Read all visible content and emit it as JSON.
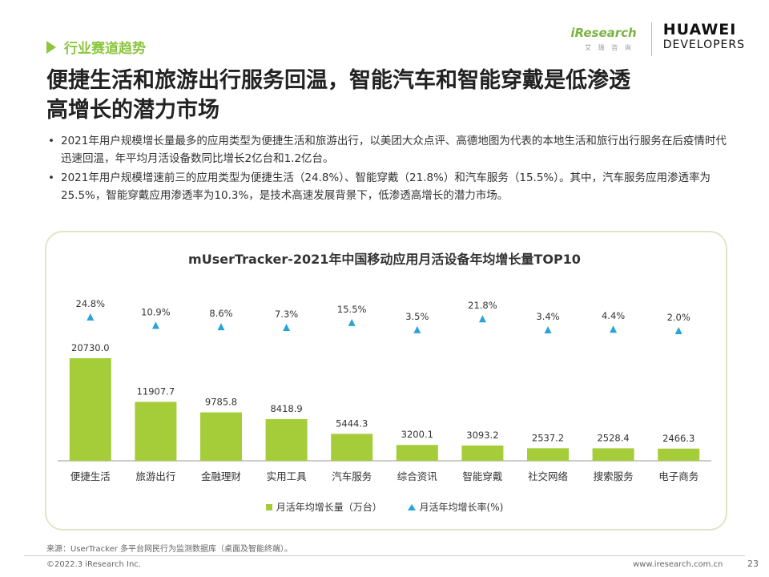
{
  "header": {
    "section_label": "行业赛道趋势",
    "title": "便捷生活和旅游出行服务回温，智能汽车和智能穿戴是低渗透高增长的潜力市场",
    "logo_iresearch": "iResearch",
    "logo_iresearch_sub": "艾 瑞 咨 询",
    "logo_huawei_line1": "HUAWEI",
    "logo_huawei_line2": "DEVELOPERS"
  },
  "bullets": [
    "2021年用户规模增长量最多的应用类型为便捷生活和旅游出行，以美团大众点评、高德地图为代表的本地生活和旅行出行服务在后疫情时代迅速回温，年平均月活设备数同比增长2亿台和1.2亿台。",
    "2021年用户规模增速前三的应用类型为便捷生活（24.8%）、智能穿戴（21.8%）和汽车服务（15.5%）。其中，汽车服务应用渗透率为25.5%，智能穿戴应用渗透率为10.3%，是技术高速发展背景下，低渗透高增长的潜力市场。"
  ],
  "chart_data": {
    "type": "bar",
    "title": "mUserTracker-2021年中国移动应用月活设备年均增长量TOP10",
    "categories": [
      "便捷生活",
      "旅游出行",
      "金融理财",
      "实用工具",
      "汽车服务",
      "综合资讯",
      "智能穿戴",
      "社交网络",
      "搜索服务",
      "电子商务"
    ],
    "series": [
      {
        "name": "月活年均增长量（万台）",
        "type": "bar",
        "color": "#a4cd39",
        "values": [
          20730.0,
          11907.7,
          9785.8,
          8418.9,
          5444.3,
          3200.1,
          3093.2,
          2537.2,
          2528.4,
          2466.3
        ],
        "labels": [
          "20730.0",
          "11907.7",
          "9785.8",
          "8418.9",
          "5444.3",
          "3200.1",
          "3093.2",
          "2537.2",
          "2528.4",
          "2466.3"
        ]
      },
      {
        "name": "月活年均增长率(%)",
        "type": "marker",
        "color": "#2aa3d8",
        "values": [
          24.8,
          10.9,
          8.6,
          7.3,
          15.5,
          3.5,
          21.8,
          3.4,
          4.4,
          2.0
        ],
        "labels": [
          "24.8%",
          "10.9%",
          "8.6%",
          "7.3%",
          "15.5%",
          "3.5%",
          "21.8%",
          "3.4%",
          "4.4%",
          "2.0%"
        ]
      }
    ],
    "legend_position": "bottom",
    "grid": false
  },
  "footer": {
    "source": "来源：UserTracker 多平台网民行为监测数据库（桌面及智能终端）。",
    "copyright": "©2022.3 iResearch Inc.",
    "website": "www.iresearch.com.cn",
    "page": "23"
  }
}
